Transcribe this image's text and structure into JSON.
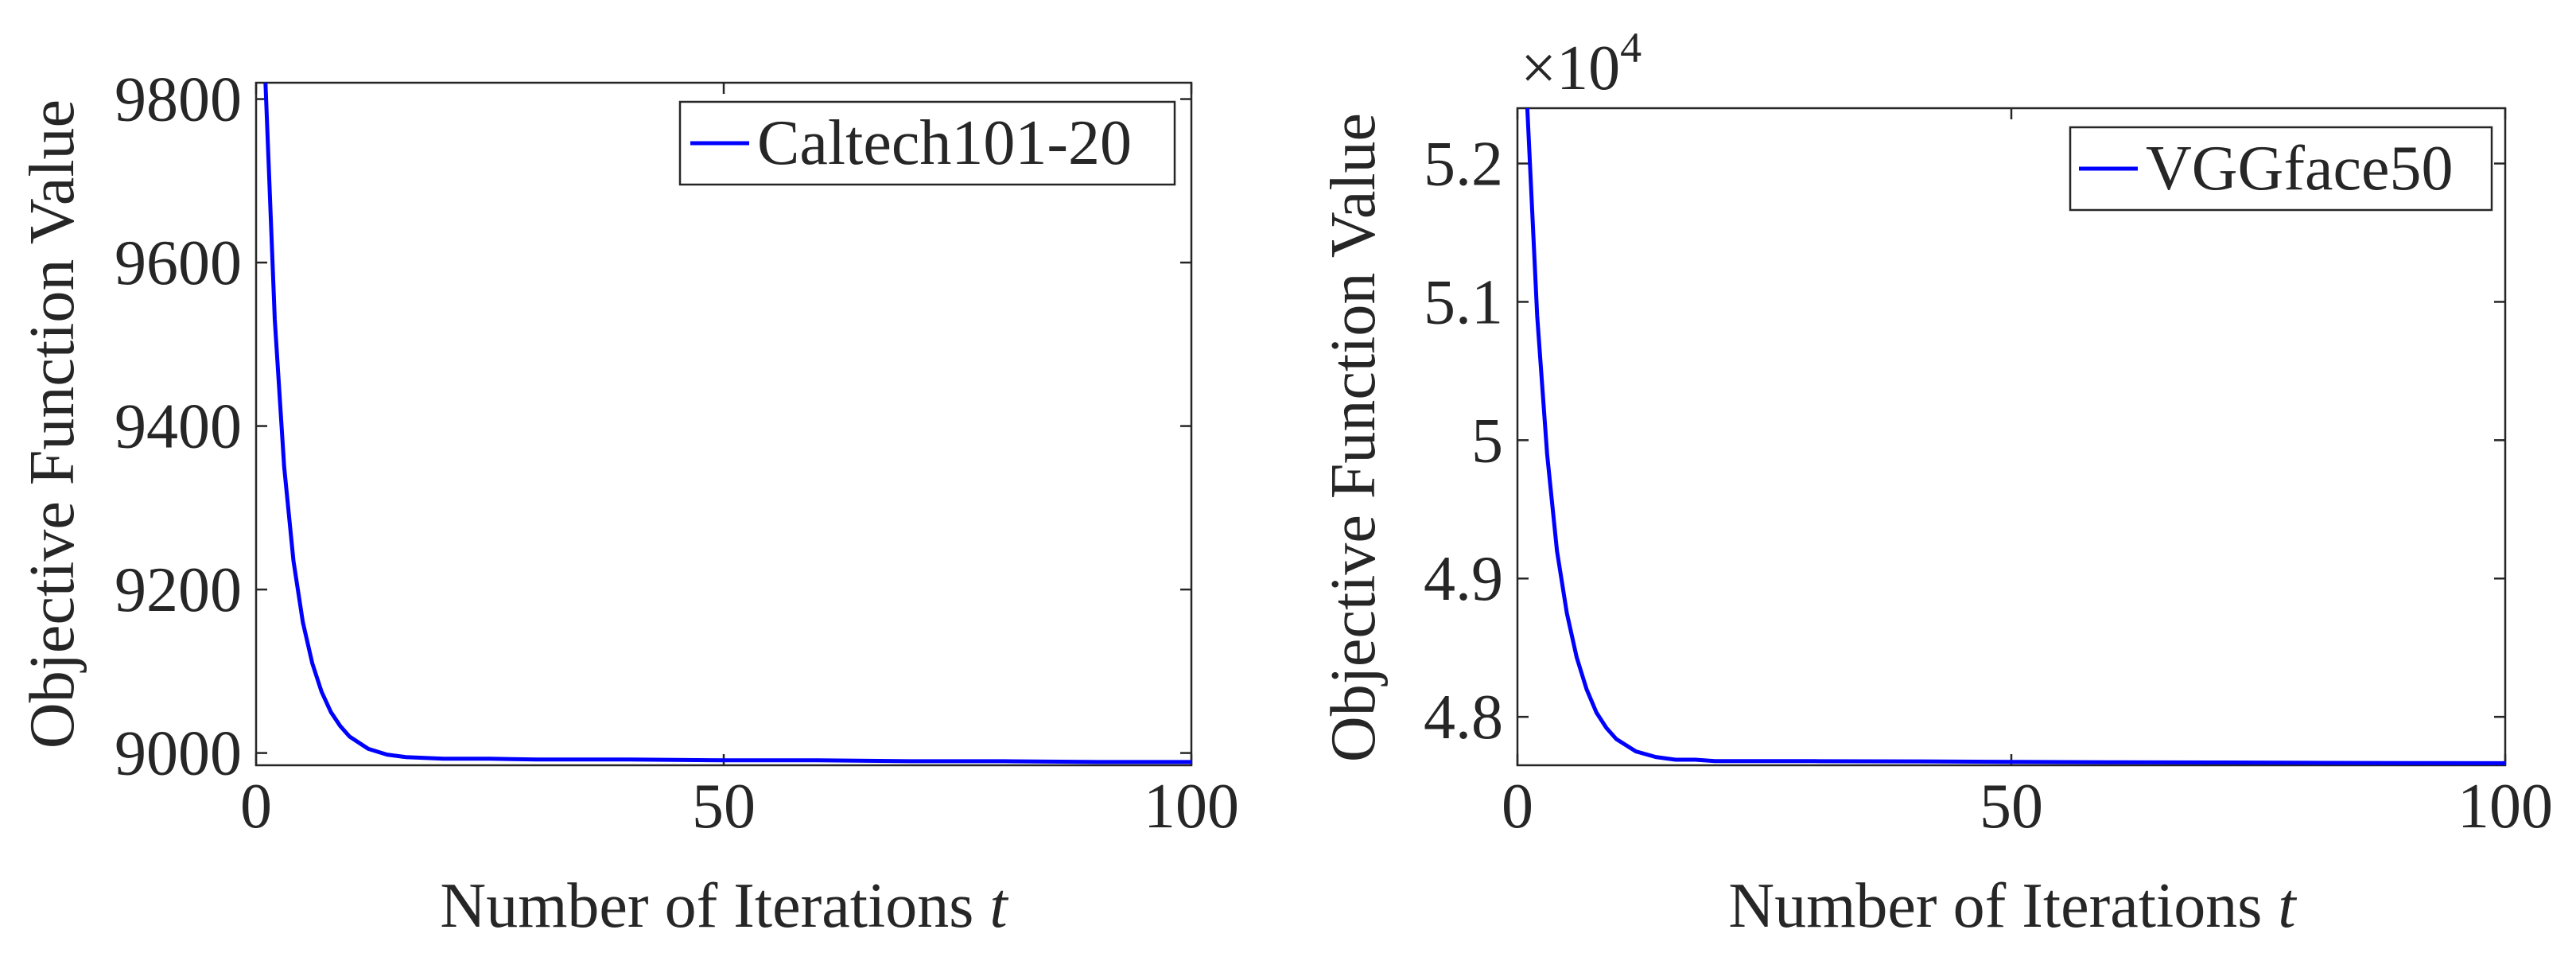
{
  "chart_data": [
    {
      "type": "line",
      "xlabel": "Number of Iterations",
      "xlabel_var": "t",
      "ylabel": "Objective Function Value",
      "exponent_label": "",
      "xlim": [
        0,
        100
      ],
      "ylim": [
        8985,
        9820
      ],
      "xticks": [
        0,
        50,
        100
      ],
      "yticks": [
        9000,
        9200,
        9400,
        9600,
        9800
      ],
      "yticklabels": [
        "9000",
        "9200",
        "9400",
        "9600",
        "9800"
      ],
      "legend_placement": "top-right",
      "series": [
        {
          "name": "Caltech101-20",
          "color": "#0000ff",
          "x": [
            1,
            2,
            3,
            4,
            5,
            6,
            7,
            8,
            9,
            10,
            12,
            14,
            16,
            18,
            20,
            25,
            30,
            40,
            50,
            60,
            70,
            80,
            90,
            100
          ],
          "y": [
            9820,
            9530,
            9350,
            9235,
            9160,
            9110,
            9075,
            9050,
            9033,
            9020,
            9005,
            8998,
            8995,
            8994,
            8993,
            8993,
            8992,
            8992,
            8991,
            8991,
            8990,
            8990,
            8989,
            8989
          ]
        }
      ]
    },
    {
      "type": "line",
      "xlabel": "Number of Iterations",
      "xlabel_var": "t",
      "ylabel": "Objective Function Value",
      "exponent_label": "×10^4",
      "xlim": [
        0,
        100
      ],
      "ylim": [
        4.765,
        5.24
      ],
      "xticks": [
        0,
        50,
        100
      ],
      "yticks": [
        4.8,
        4.9,
        5.0,
        5.1,
        5.2
      ],
      "yticklabels": [
        "4.8",
        "4.9",
        "5",
        "5.1",
        "5.2"
      ],
      "legend_placement": "top-right",
      "series": [
        {
          "name": "VGGface50",
          "color": "#0000ff",
          "x": [
            1,
            2,
            3,
            4,
            5,
            6,
            7,
            8,
            9,
            10,
            12,
            14,
            16,
            18,
            20,
            25,
            30,
            40,
            50,
            60,
            70,
            80,
            90,
            100
          ],
          "y": [
            5.24,
            5.09,
            4.99,
            4.92,
            4.875,
            4.843,
            4.82,
            4.803,
            4.792,
            4.784,
            4.775,
            4.771,
            4.769,
            4.769,
            4.768,
            4.768,
            4.768,
            4.7678,
            4.7675,
            4.7672,
            4.767,
            4.7668,
            4.7666,
            4.7665
          ]
        }
      ]
    }
  ]
}
